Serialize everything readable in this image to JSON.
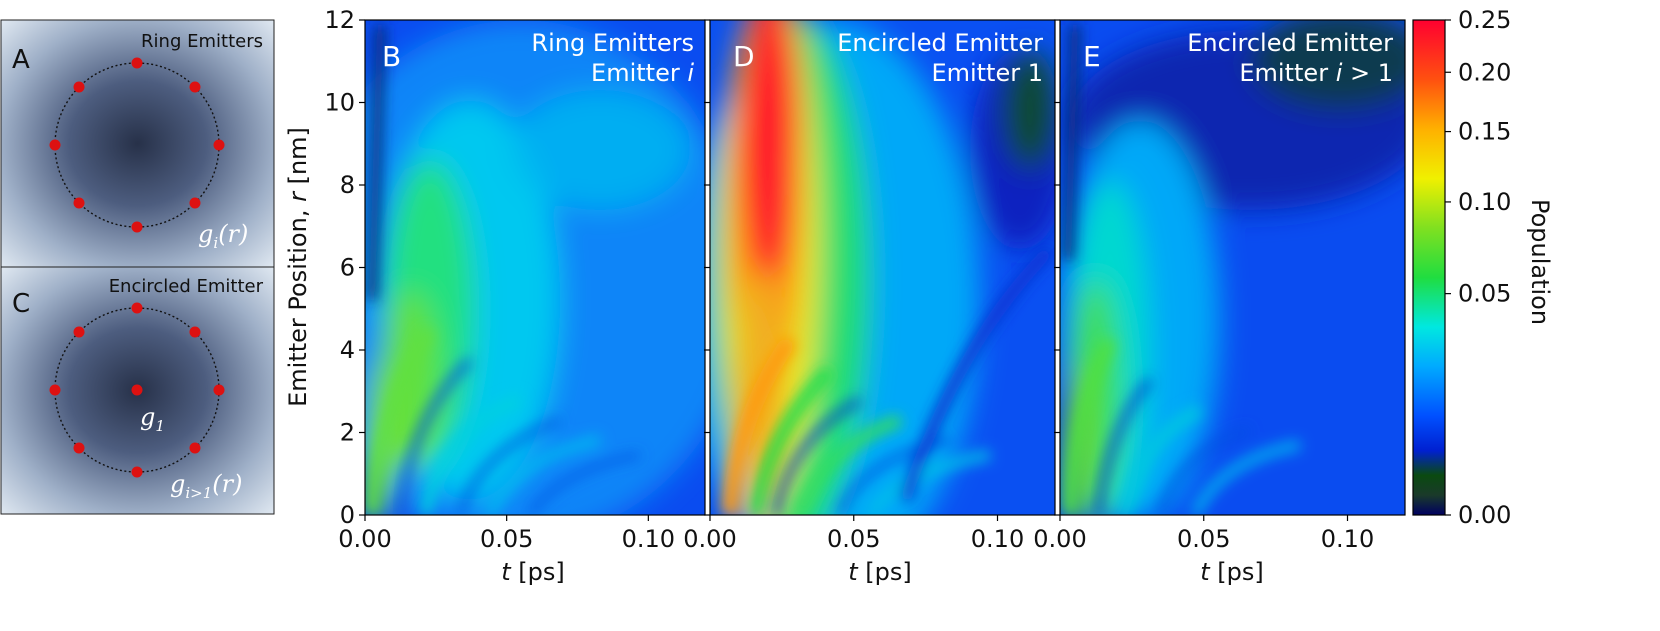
{
  "colors": {
    "emitter_dot": "#dd1111",
    "panel_bg_edge": "#dfe8f2",
    "panel_bg_center": "#2a3550",
    "overlay_text": "#ffffff"
  },
  "schematics": [
    {
      "letter": "A",
      "title": "Ring Emitters",
      "label_main": "g",
      "label_sub": "i",
      "label_arg": "(r)",
      "emitters": 8,
      "center_emitter": false
    },
    {
      "letter": "C",
      "title": "Encircled Emitter",
      "label_main": "g",
      "label_sub": "i>1",
      "label_arg": "(r)",
      "center_label_main": "g",
      "center_label_sub": "1",
      "emitters": 8,
      "center_emitter": true
    }
  ],
  "chart_data": [
    {
      "type": "heatmap",
      "letter": "B",
      "overlay_line1": "Ring Emitters",
      "overlay_line2_text": "Emitter ",
      "overlay_line2_var": "i",
      "xlabel_var": "t",
      "xlabel_unit": " [ps]",
      "ylabel": "Emitter Position, ",
      "ylabel_var": "r",
      "ylabel_unit": " [nm]",
      "xlim": [
        0,
        0.12
      ],
      "ylim": [
        0,
        12
      ],
      "xticks": [
        0.0,
        0.05,
        0.1
      ],
      "xtick_labels": [
        "0.00",
        "0.05",
        "0.10"
      ],
      "yticks": [
        0,
        2,
        4,
        6,
        8,
        10,
        12
      ],
      "ytick_labels": [
        "0",
        "2",
        "4",
        "6",
        "8",
        "10",
        "12"
      ]
    },
    {
      "type": "heatmap",
      "letter": "D",
      "overlay_line1": "Encircled Emitter",
      "overlay_line2_text": "Emitter 1",
      "overlay_line2_var": "",
      "xlabel_var": "t",
      "xlabel_unit": " [ps]",
      "xlim": [
        0,
        0.12
      ],
      "ylim": [
        0,
        12
      ],
      "xticks": [
        0.0,
        0.05,
        0.1
      ],
      "xtick_labels": [
        "0.00",
        "0.05",
        "0.10"
      ]
    },
    {
      "type": "heatmap",
      "letter": "E",
      "overlay_line1": "Encircled Emitter",
      "overlay_line2_text": "Emitter ",
      "overlay_line2_var": "i",
      "overlay_line2_rest": " > 1",
      "xlabel_var": "t",
      "xlabel_unit": " [ps]",
      "xlim": [
        0,
        0.12
      ],
      "ylim": [
        0,
        12
      ],
      "xticks": [
        0.0,
        0.05,
        0.1
      ],
      "xtick_labels": [
        "0.00",
        "0.05",
        "0.10"
      ]
    }
  ],
  "colorbar": {
    "label": "Population",
    "range": [
      0,
      0.25
    ],
    "ticks": [
      0.0,
      0.05,
      0.1,
      0.15,
      0.2,
      0.25
    ],
    "tick_labels": [
      "0.00",
      "0.05",
      "0.10",
      "0.15",
      "0.20",
      "0.25"
    ]
  }
}
